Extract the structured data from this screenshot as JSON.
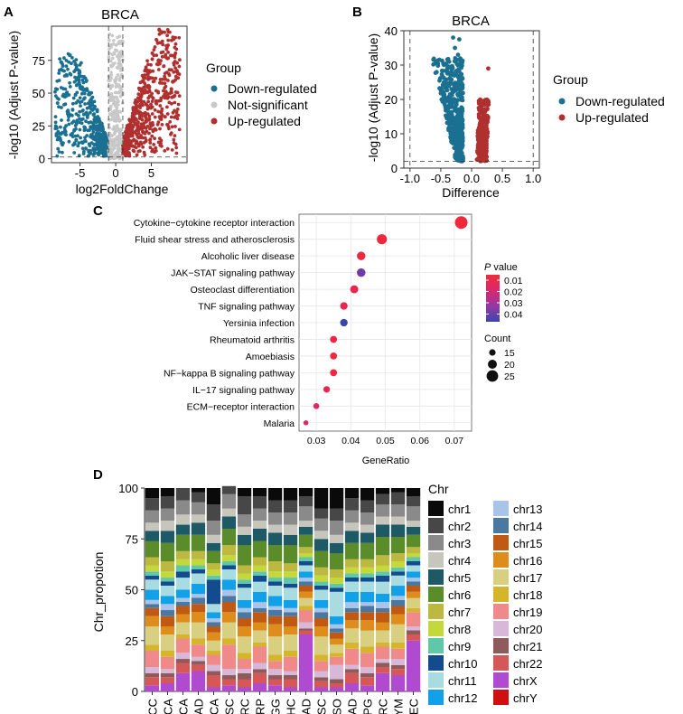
{
  "panels": {
    "a": "A",
    "b": "B",
    "c": "C",
    "d": "D"
  },
  "chart_data": [
    {
      "type": "scatter",
      "panel": "A",
      "title": "BRCA",
      "xlabel": "log2FoldChange",
      "ylabel": "-log10 (Adjust P-value)",
      "xlim": [
        -9,
        10
      ],
      "ylim": [
        -3,
        101
      ],
      "xticks": [
        -5,
        0,
        5
      ],
      "yticks": [
        0,
        25,
        50,
        75
      ],
      "x_threshold": [
        -1,
        1
      ],
      "y_threshold": 1.3,
      "legend_title": "Group",
      "series": [
        {
          "name": "Down-regulated",
          "color": "#1b7091",
          "x_range": [
            -8.5,
            -1
          ],
          "y_peak": 78
        },
        {
          "name": "Not-significant",
          "color": "#c8c8c8",
          "x_range": [
            -1,
            1
          ],
          "y_peak": 95
        },
        {
          "name": "Up-regulated",
          "color": "#b03030",
          "x_range": [
            1,
            9
          ],
          "y_peak": 97
        }
      ]
    },
    {
      "type": "scatter",
      "panel": "B",
      "title": "BRCA",
      "xlabel": "Difference",
      "ylabel": "-log10 (Adjust P-value)",
      "xlim": [
        -1.1,
        1.1
      ],
      "ylim": [
        0,
        40
      ],
      "xticks": [
        -1.0,
        -0.5,
        0.0,
        0.5,
        1.0
      ],
      "xtick_labels": [
        "-1.0",
        "-0.5",
        "0.0",
        "0.5",
        "1.0"
      ],
      "yticks": [
        0,
        10,
        20,
        30,
        40
      ],
      "x_threshold": [
        -1,
        1
      ],
      "y_threshold": 2,
      "legend_title": "Group",
      "series": [
        {
          "name": "Down-regulated",
          "color": "#1b7091",
          "x_range": [
            -0.45,
            -0.05
          ],
          "y_peak": 38
        },
        {
          "name": "Up-regulated",
          "color": "#b03030",
          "x_range": [
            0.05,
            0.3
          ],
          "y_peak": 29
        }
      ]
    },
    {
      "type": "scatter",
      "panel": "C",
      "xlabel": "GeneRatio",
      "xlim": [
        0.025,
        0.075
      ],
      "xticks": [
        0.03,
        0.04,
        0.05,
        0.06,
        0.07
      ],
      "xtick_labels": [
        "0.03",
        "0.04",
        "0.05",
        "0.06",
        "0.07"
      ],
      "categories": [
        "Cytokine−cytokine receptor interaction",
        "Fluid shear stress and atherosclerosis",
        "Alcoholic liver disease",
        "JAK−STAT signaling pathway",
        "Osteoclast differentiation",
        "TNF signaling pathway",
        "Yersinia infection",
        "Rheumatoid arthritis",
        "Amoebiasis",
        "NF−kappa B signaling pathway",
        "IL−17 signaling pathway",
        "ECM−receptor interaction",
        "Malaria"
      ],
      "gene_ratio": [
        0.072,
        0.049,
        0.043,
        0.043,
        0.041,
        0.038,
        0.038,
        0.035,
        0.035,
        0.035,
        0.033,
        0.03,
        0.027
      ],
      "count": [
        27,
        22,
        19,
        19,
        18,
        17,
        17,
        16,
        16,
        16,
        15,
        14,
        12
      ],
      "p_value": [
        0.003,
        0.005,
        0.006,
        0.035,
        0.009,
        0.008,
        0.045,
        0.007,
        0.006,
        0.006,
        0.01,
        0.012,
        0.012
      ],
      "p_legend_prefix": "P",
      "p_legend_suffix": " value",
      "p_ticks": [
        "0.01",
        "0.02",
        "0.03",
        "0.04"
      ],
      "count_legend_title": "Count",
      "count_ticks": [
        "15",
        "20",
        "25"
      ]
    },
    {
      "type": "bar",
      "panel": "D",
      "stacked": true,
      "ylabel": "Chr_propotion",
      "ylim": [
        0,
        100
      ],
      "yticks": [
        "0",
        "25",
        "50",
        "75",
        "100"
      ],
      "legend_title": "Chr",
      "categories": [
        "ACC",
        "BLCA",
        "BRCA",
        "COAD",
        "ESCA",
        "HNSC",
        "KIRC",
        "KIRP",
        "LGG",
        "LIHC",
        "LUAD",
        "LUSC",
        "MESO",
        "PAAD",
        "PCPG",
        "SARC",
        "THYM",
        "UCEC"
      ],
      "series": [
        {
          "name": "chrX",
          "color": "#b04ad0",
          "values": [
            3,
            4,
            9,
            10,
            2,
            3,
            2,
            4,
            3,
            2,
            28,
            2,
            2,
            4,
            3,
            9,
            8,
            25
          ]
        },
        {
          "name": "chr22",
          "color": "#d65757",
          "values": [
            4,
            3,
            5,
            3,
            6,
            3,
            4,
            5,
            3,
            4,
            2,
            3,
            2,
            5,
            4,
            3,
            3,
            3
          ]
        },
        {
          "name": "chr21",
          "color": "#8e5a5a",
          "values": [
            2,
            2,
            2,
            2,
            2,
            2,
            3,
            2,
            2,
            2,
            1,
            2,
            2,
            2,
            2,
            2,
            2,
            2
          ]
        },
        {
          "name": "chr20",
          "color": "#d8b8d8",
          "values": [
            3,
            2,
            3,
            2,
            3,
            3,
            2,
            3,
            3,
            2,
            3,
            3,
            7,
            2,
            3,
            2,
            3,
            2
          ]
        },
        {
          "name": "chr19",
          "color": "#f08a8a",
          "values": [
            8,
            6,
            7,
            6,
            5,
            12,
            5,
            8,
            4,
            7,
            6,
            5,
            4,
            8,
            7,
            6,
            5,
            7
          ]
        },
        {
          "name": "chr18",
          "color": "#d4b52b",
          "values": [
            3,
            3,
            2,
            3,
            2,
            3,
            3,
            2,
            3,
            3,
            2,
            3,
            2,
            3,
            3,
            2,
            3,
            2
          ]
        },
        {
          "name": "chr17",
          "color": "#d8d080",
          "values": [
            9,
            8,
            6,
            8,
            5,
            8,
            8,
            6,
            9,
            8,
            4,
            9,
            4,
            7,
            8,
            6,
            9,
            5
          ]
        },
        {
          "name": "chr16",
          "color": "#de8c1c",
          "values": [
            5,
            4,
            4,
            5,
            4,
            5,
            5,
            4,
            6,
            4,
            3,
            5,
            3,
            4,
            5,
            4,
            5,
            3
          ]
        },
        {
          "name": "chr15",
          "color": "#c05a12",
          "values": [
            4,
            5,
            4,
            4,
            3,
            5,
            4,
            5,
            4,
            5,
            3,
            4,
            3,
            4,
            4,
            5,
            4,
            3
          ]
        },
        {
          "name": "chr14",
          "color": "#4a78a0",
          "values": [
            2,
            3,
            2,
            3,
            2,
            3,
            3,
            2,
            3,
            2,
            2,
            3,
            2,
            2,
            3,
            2,
            3,
            2
          ]
        },
        {
          "name": "chr13",
          "color": "#a8c4e8",
          "values": [
            2,
            3,
            2,
            2,
            2,
            3,
            2,
            3,
            2,
            2,
            2,
            2,
            2,
            3,
            2,
            3,
            2,
            2
          ]
        },
        {
          "name": "chr12",
          "color": "#12a0e8",
          "values": [
            5,
            4,
            4,
            5,
            3,
            5,
            4,
            5,
            5,
            4,
            3,
            4,
            4,
            5,
            5,
            4,
            5,
            3
          ]
        },
        {
          "name": "chr11",
          "color": "#a8dce0",
          "values": [
            5,
            5,
            6,
            5,
            4,
            5,
            6,
            5,
            5,
            6,
            3,
            5,
            12,
            5,
            5,
            6,
            5,
            3
          ]
        },
        {
          "name": "chr10",
          "color": "#124b8e",
          "values": [
            2,
            2,
            3,
            2,
            12,
            2,
            2,
            3,
            2,
            2,
            2,
            2,
            2,
            2,
            2,
            3,
            2,
            2
          ]
        },
        {
          "name": "chr9",
          "color": "#5ec8a8",
          "values": [
            2,
            2,
            3,
            2,
            2,
            2,
            2,
            2,
            2,
            3,
            2,
            2,
            2,
            2,
            2,
            2,
            2,
            2
          ]
        },
        {
          "name": "chr8",
          "color": "#c4d83c",
          "values": [
            3,
            3,
            3,
            3,
            3,
            3,
            3,
            3,
            3,
            3,
            2,
            3,
            3,
            3,
            3,
            3,
            3,
            2
          ]
        },
        {
          "name": "chr7",
          "color": "#bcb840",
          "values": [
            4,
            5,
            4,
            4,
            3,
            5,
            4,
            4,
            5,
            4,
            3,
            4,
            4,
            4,
            4,
            5,
            4,
            3
          ]
        },
        {
          "name": "chr6",
          "color": "#5a8c2a",
          "values": [
            8,
            9,
            8,
            8,
            6,
            8,
            10,
            8,
            8,
            9,
            6,
            8,
            8,
            8,
            8,
            9,
            8,
            6
          ]
        },
        {
          "name": "chr5",
          "color": "#1d5a66",
          "values": [
            5,
            6,
            5,
            6,
            4,
            6,
            5,
            6,
            6,
            5,
            4,
            6,
            5,
            6,
            5,
            6,
            6,
            4
          ]
        },
        {
          "name": "chr4",
          "color": "#c6c6bc",
          "values": [
            4,
            5,
            5,
            4,
            4,
            4,
            4,
            4,
            4,
            5,
            3,
            4,
            4,
            4,
            4,
            4,
            4,
            3
          ]
        },
        {
          "name": "chr3",
          "color": "#8a8a8a",
          "values": [
            6,
            6,
            7,
            6,
            7,
            7,
            6,
            6,
            6,
            6,
            7,
            6,
            7,
            6,
            6,
            6,
            6,
            7
          ]
        },
        {
          "name": "chr2",
          "color": "#474747",
          "values": [
            6,
            6,
            6,
            5,
            8,
            4,
            9,
            6,
            6,
            6,
            5,
            5,
            6,
            6,
            6,
            5,
            6,
            5
          ]
        },
        {
          "name": "chr1",
          "color": "#0a0a0a",
          "values": [
            0,
            0,
            0,
            0,
            0,
            0,
            0,
            0,
            0,
            0,
            0,
            0,
            0,
            0,
            0,
            0,
            0,
            0
          ]
        },
        {
          "name": "chrY",
          "color": "#d01010",
          "values": [
            0,
            0,
            0,
            0,
            0,
            0,
            0,
            0,
            0,
            0,
            0,
            0,
            0,
            0,
            0,
            0,
            0,
            0
          ]
        }
      ],
      "legend_order": [
        "chr1",
        "chr2",
        "chr3",
        "chr4",
        "chr5",
        "chr6",
        "chr7",
        "chr8",
        "chr9",
        "chr10",
        "chr11",
        "chr12",
        "chr13",
        "chr14",
        "chr15",
        "chr16",
        "chr17",
        "chr18",
        "chr19",
        "chr20",
        "chr21",
        "chr22",
        "chrX",
        "chrY"
      ]
    }
  ]
}
